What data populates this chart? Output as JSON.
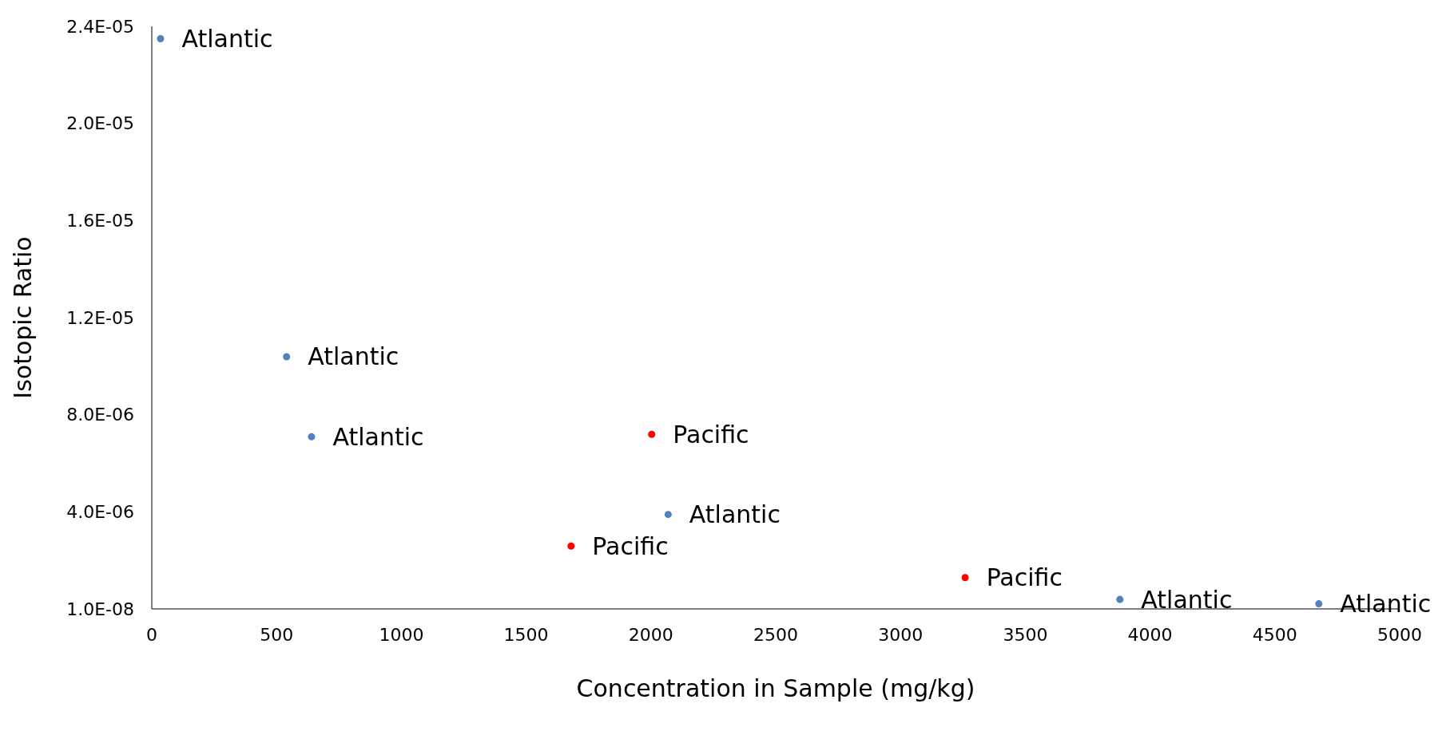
{
  "chart_data": {
    "type": "scatter",
    "xlabel": "Concentration in Sample (mg/kg)",
    "ylabel": "Isotopic Ratio",
    "series": [
      {
        "name": "Atlantic",
        "color": "#4f81bd",
        "x": [
          35,
          540,
          640,
          2069,
          3879,
          4676
        ],
        "values": [
          2.35e-05,
          1.04e-05,
          7.1e-06,
          3.9e-06,
          4e-07,
          2.2e-07
        ]
      },
      {
        "name": "Pacific",
        "color": "#ff0000",
        "x": [
          2003,
          1680,
          3259
        ],
        "values": [
          7.2e-06,
          2.6e-06,
          1.3e-06
        ]
      }
    ],
    "xlim": [
      0,
      5000
    ],
    "xticks": [
      0,
      500,
      1000,
      1500,
      2000,
      2500,
      3000,
      3500,
      4000,
      4500,
      5000
    ],
    "ylim": [
      1e-08,
      2.401e-05
    ],
    "yticks": [
      {
        "value": 1e-08,
        "label": "1.0E-08"
      },
      {
        "value": 4.01e-06,
        "label": "4.0E-06"
      },
      {
        "value": 8.01e-06,
        "label": "8.0E-06"
      },
      {
        "value": 1.201e-05,
        "label": "1.2E-05"
      },
      {
        "value": 1.601e-05,
        "label": "1.6E-05"
      },
      {
        "value": 2.001e-05,
        "label": "2.0E-05"
      },
      {
        "value": 2.401e-05,
        "label": "2.4E-05"
      }
    ],
    "grid": false,
    "legend": false,
    "marker": "circle"
  }
}
